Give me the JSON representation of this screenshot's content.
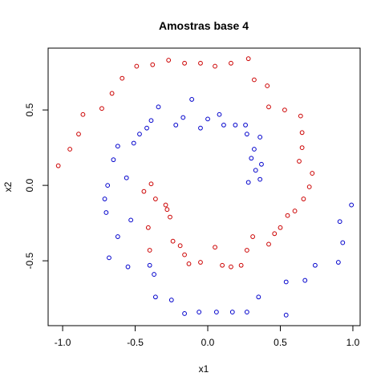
{
  "chart_data": {
    "type": "scatter",
    "title": "Amostras base 4",
    "xlabel": "x1",
    "ylabel": "x2",
    "xlim": [
      -1.1,
      1.05
    ],
    "ylim": [
      -0.93,
      0.91
    ],
    "x_ticks": [
      -1.0,
      -0.5,
      0.0,
      0.5,
      1.0
    ],
    "x_tick_labels": [
      "-1.0",
      "-0.5",
      "0.0",
      "0.5",
      "1.0"
    ],
    "y_ticks": [
      -0.5,
      0.0,
      0.5
    ],
    "y_tick_labels": [
      "-0.5",
      "0.0",
      "0.5"
    ],
    "grid": false,
    "legend": "none",
    "colors": {
      "red": "#cc0000",
      "blue": "#0000cc",
      "frame": "#000000"
    },
    "series": [
      {
        "color": "#cc0000",
        "points": [
          [
            -1.03,
            0.13
          ],
          [
            -0.95,
            0.24
          ],
          [
            -0.89,
            0.34
          ],
          [
            -0.86,
            0.47
          ],
          [
            -0.73,
            0.51
          ],
          [
            -0.66,
            0.61
          ],
          [
            -0.59,
            0.71
          ],
          [
            -0.49,
            0.79
          ],
          [
            -0.38,
            0.8
          ],
          [
            -0.27,
            0.83
          ],
          [
            -0.16,
            0.81
          ],
          [
            -0.05,
            0.81
          ],
          [
            0.05,
            0.79
          ],
          [
            0.16,
            0.81
          ],
          [
            0.28,
            0.84
          ],
          [
            0.32,
            0.7
          ],
          [
            0.41,
            0.66
          ],
          [
            0.42,
            0.52
          ],
          [
            0.53,
            0.5
          ],
          [
            0.64,
            0.46
          ],
          [
            0.65,
            0.35
          ],
          [
            0.65,
            0.25
          ],
          [
            0.63,
            0.16
          ],
          [
            0.72,
            0.08
          ],
          [
            0.7,
            -0.01
          ],
          [
            0.66,
            -0.09
          ],
          [
            0.6,
            -0.17
          ],
          [
            0.55,
            -0.2
          ],
          [
            0.5,
            -0.28
          ],
          [
            0.46,
            -0.32
          ],
          [
            0.42,
            -0.39
          ],
          [
            0.31,
            -0.34
          ],
          [
            0.27,
            -0.43
          ],
          [
            0.23,
            -0.53
          ],
          [
            0.16,
            -0.54
          ],
          [
            0.1,
            -0.53
          ],
          [
            0.05,
            -0.41
          ],
          [
            -0.05,
            -0.51
          ],
          [
            -0.13,
            -0.52
          ],
          [
            -0.16,
            -0.46
          ],
          [
            -0.19,
            -0.4
          ],
          [
            -0.24,
            -0.37
          ],
          [
            -0.26,
            -0.21
          ],
          [
            -0.28,
            -0.16
          ],
          [
            -0.29,
            -0.13
          ],
          [
            -0.36,
            -0.09
          ],
          [
            -0.39,
            0.01
          ],
          [
            -0.44,
            -0.04
          ],
          [
            -0.41,
            -0.28
          ],
          [
            -0.4,
            -0.43
          ]
        ]
      },
      {
        "color": "#0000cc",
        "points": [
          [
            -0.71,
            -0.09
          ],
          [
            -0.7,
            -0.18
          ],
          [
            -0.69,
            0.0
          ],
          [
            -0.68,
            -0.48
          ],
          [
            -0.62,
            -0.34
          ],
          [
            -0.65,
            0.17
          ],
          [
            -0.62,
            0.26
          ],
          [
            -0.56,
            0.05
          ],
          [
            -0.53,
            -0.23
          ],
          [
            -0.55,
            -0.54
          ],
          [
            -0.51,
            0.28
          ],
          [
            -0.47,
            0.34
          ],
          [
            -0.42,
            0.38
          ],
          [
            -0.4,
            -0.53
          ],
          [
            -0.39,
            0.43
          ],
          [
            -0.37,
            -0.59
          ],
          [
            -0.34,
            0.52
          ],
          [
            -0.36,
            -0.74
          ],
          [
            -0.25,
            -0.76
          ],
          [
            -0.22,
            0.4
          ],
          [
            -0.17,
            0.45
          ],
          [
            -0.16,
            -0.85
          ],
          [
            -0.11,
            0.57
          ],
          [
            -0.05,
            0.38
          ],
          [
            -0.06,
            -0.84
          ],
          [
            0.0,
            0.44
          ],
          [
            0.06,
            -0.84
          ],
          [
            0.08,
            0.47
          ],
          [
            0.11,
            0.4
          ],
          [
            0.17,
            -0.84
          ],
          [
            0.19,
            0.4
          ],
          [
            0.26,
            0.4
          ],
          [
            0.27,
            -0.84
          ],
          [
            0.27,
            0.34
          ],
          [
            0.3,
            0.18
          ],
          [
            0.32,
            0.24
          ],
          [
            0.36,
            0.32
          ],
          [
            0.33,
            0.1
          ],
          [
            0.37,
            0.14
          ],
          [
            0.36,
            0.04
          ],
          [
            0.28,
            0.02
          ],
          [
            0.35,
            -0.74
          ],
          [
            0.54,
            -0.64
          ],
          [
            0.54,
            -0.86
          ],
          [
            0.67,
            -0.63
          ],
          [
            0.74,
            -0.53
          ],
          [
            0.9,
            -0.51
          ],
          [
            0.91,
            -0.24
          ],
          [
            0.93,
            -0.38
          ],
          [
            0.99,
            -0.13
          ]
        ]
      }
    ]
  }
}
